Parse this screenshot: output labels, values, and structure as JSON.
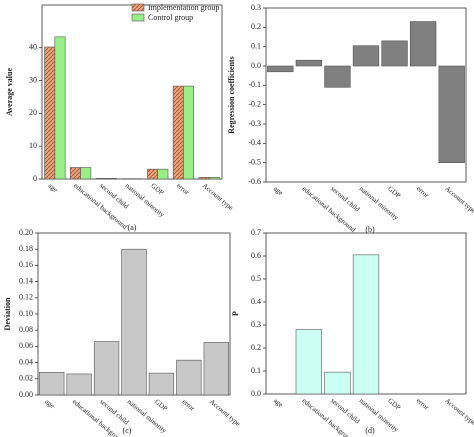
{
  "chart_data": [
    {
      "type": "bar",
      "label": "(a)",
      "y_label": "Average value",
      "categories": [
        "age",
        "educational background",
        "second child",
        "national minority",
        "GDP",
        "error",
        "Account type"
      ],
      "series": [
        {
          "name": "Implementation group",
          "color": "#e8a27c",
          "values": [
            40.2,
            3.5,
            0.2,
            0.1,
            3.0,
            28.3,
            0.5
          ]
        },
        {
          "name": "Control group",
          "color": "#99ee88",
          "values": [
            43.3,
            3.5,
            0.2,
            0.1,
            3.0,
            28.3,
            0.5
          ]
        }
      ],
      "ylim": [
        0,
        53
      ],
      "yticks": [
        0,
        10,
        20,
        30,
        40
      ],
      "legend": "upper right"
    },
    {
      "type": "bar",
      "label": "(b)",
      "y_label": "Regression coefficients",
      "categories": [
        "age",
        "educational background",
        "second child",
        "national minority",
        "GDP",
        "error",
        "Account type"
      ],
      "values": [
        -0.03,
        0.03,
        -0.11,
        0.105,
        0.13,
        0.23,
        -0.5
      ],
      "color": "#808080",
      "ylim": [
        -0.6,
        0.3
      ],
      "yticks": [
        -0.6,
        -0.5,
        -0.4,
        -0.3,
        -0.2,
        -0.1,
        {
          "value": 0,
          "label": "0.0"
        },
        0.1,
        0.2,
        0.3
      ]
    },
    {
      "type": "bar",
      "label": "(c)",
      "y_label": "Deviation",
      "categories": [
        "age",
        "educational background",
        "second child",
        "national minority",
        "GDP",
        "error",
        "Account type"
      ],
      "values": [
        0.028,
        0.026,
        0.066,
        0.18,
        0.027,
        0.043,
        0.065
      ],
      "color": "#c8c8c8",
      "ylim": [
        0,
        0.2
      ],
      "yticks": [
        {
          "value": 0,
          "label": "0.00"
        },
        0.02,
        0.04,
        0.06,
        0.08,
        {
          "value": 0.1,
          "label": "0.10"
        },
        0.12,
        0.14,
        0.16,
        0.18,
        {
          "value": 0.2,
          "label": "0.20"
        }
      ]
    },
    {
      "type": "bar",
      "label": "(d)",
      "y_label": "P",
      "categories": [
        "age",
        "educational background",
        "second child",
        "national minority",
        "GDP",
        "error",
        "Account type"
      ],
      "values": [
        0,
        0.28,
        0.095,
        0.605,
        0,
        0,
        0
      ],
      "color": "#ccfff4",
      "ylim": [
        0,
        0.7
      ],
      "yticks": [
        {
          "value": 0,
          "label": "0.0"
        },
        0.1,
        0.2,
        0.3,
        0.4,
        0.5,
        0.6,
        0.7
      ]
    }
  ]
}
